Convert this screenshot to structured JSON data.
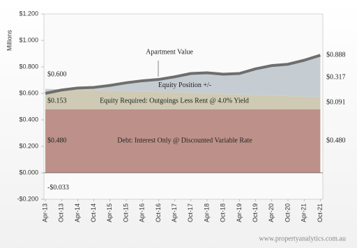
{
  "chart_data": {
    "type": "stacked-area",
    "y_axis_label": "Millions",
    "source": "www.propertyanalytics.com.au",
    "categories": [
      "Apr-13",
      "Oct-13",
      "Apr-14",
      "Oct-14",
      "Apr-15",
      "Oct-15",
      "Apr-16",
      "Oct-16",
      "Apr-17",
      "Oct-17",
      "Apr-18",
      "Oct-18",
      "Apr-19",
      "Oct-19",
      "Apr-20",
      "Oct-20",
      "Apr-21",
      "Oct-21"
    ],
    "ylim": [
      -0.2,
      1.2
    ],
    "yticks": [
      {
        "value": -0.2,
        "label": "-$0.200"
      },
      {
        "value": 0,
        "label": "$0.000"
      },
      {
        "value": 0.2,
        "label": "$0.200"
      },
      {
        "value": 0.4,
        "label": "$0.400"
      },
      {
        "value": 0.6,
        "label": "$0.600"
      },
      {
        "value": 0.8,
        "label": "$0.800"
      },
      {
        "value": 1.0,
        "label": "$1.000"
      },
      {
        "value": 1.2,
        "label": "$1.200"
      }
    ],
    "series": [
      {
        "name": "Debt: Interest Only @ Discounted Variable Rate",
        "color": "#bd9189",
        "values": [
          0.48,
          0.48,
          0.48,
          0.48,
          0.48,
          0.48,
          0.48,
          0.48,
          0.48,
          0.48,
          0.48,
          0.48,
          0.48,
          0.48,
          0.48,
          0.48,
          0.48,
          0.48
        ],
        "value_labels": [
          "$0.480",
          null,
          null,
          null,
          null,
          null,
          null,
          null,
          null,
          null,
          null,
          null,
          null,
          null,
          null,
          null,
          null,
          "$0.480"
        ]
      },
      {
        "name": "Equity Required: Outgoings Less Rent @ 4.0% Yield",
        "color": "#cfcab3",
        "values": [
          0.153,
          0.15,
          0.147,
          0.144,
          0.14,
          0.137,
          0.134,
          0.13,
          0.127,
          0.123,
          0.119,
          0.115,
          0.111,
          0.107,
          0.103,
          0.099,
          0.095,
          0.091
        ],
        "value_labels": [
          "$0.153",
          null,
          null,
          null,
          null,
          null,
          null,
          null,
          null,
          null,
          null,
          null,
          null,
          null,
          null,
          null,
          null,
          "$0.091"
        ]
      },
      {
        "name": "Equity Position +/-",
        "color": "#c6cdd2",
        "values": [
          -0.033,
          -0.005,
          0.013,
          0.021,
          0.04,
          0.063,
          0.081,
          0.095,
          0.118,
          0.147,
          0.156,
          0.15,
          0.159,
          0.198,
          0.227,
          0.241,
          0.275,
          0.317
        ],
        "value_labels": [
          "-$0.033",
          null,
          null,
          null,
          null,
          null,
          null,
          null,
          null,
          null,
          null,
          null,
          null,
          null,
          null,
          null,
          null,
          "$0.317"
        ]
      },
      {
        "name": "Apartment Value",
        "color": "#6e6e6e",
        "kind": "line",
        "values": [
          0.6,
          0.625,
          0.64,
          0.645,
          0.66,
          0.68,
          0.695,
          0.705,
          0.725,
          0.75,
          0.755,
          0.745,
          0.75,
          0.785,
          0.81,
          0.82,
          0.85,
          0.888
        ],
        "value_labels": [
          "$0.600",
          null,
          null,
          null,
          null,
          null,
          null,
          null,
          null,
          null,
          null,
          null,
          null,
          null,
          null,
          null,
          null,
          "$0.888"
        ]
      }
    ]
  }
}
